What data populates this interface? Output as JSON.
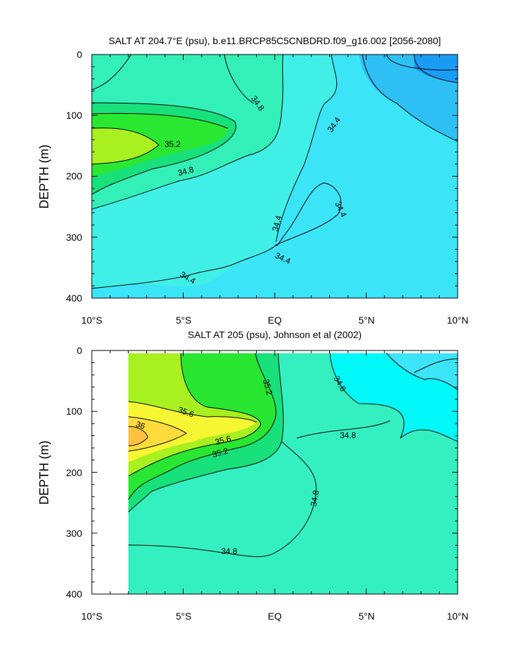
{
  "chart_data": [
    {
      "type": "heatmap",
      "title": "SALT AT 204.7°E (psu), b.e11.BRCP85C5CNBDRD.f09_g16.002 [2056-2080]",
      "xlabel": "",
      "ylabel": "DEPTH (m)",
      "xlim": [
        -10,
        10
      ],
      "ylim": [
        400,
        0
      ],
      "y_ticks": [
        "0",
        "100",
        "200",
        "300",
        "400"
      ],
      "x_ticks": [
        "10°S",
        "5°S",
        "EQ",
        "5°N",
        "10°N"
      ],
      "grid": false,
      "contour_labels": [
        "34.8",
        "35.2",
        "34.8",
        "34.4",
        "34.4",
        "34.4",
        "34.4",
        "34.4"
      ],
      "colors": {
        "v34_0": "#1a9cf5",
        "v34_2": "#2ec0f5",
        "v34_4": "#3ce4f8",
        "v34_6": "#40f0e6",
        "v34_8": "#33f0b8",
        "v35_0": "#18e07a",
        "v35_2": "#2ae832",
        "v35_4": "#a8f020"
      }
    },
    {
      "type": "heatmap",
      "title": "SALT AT 205 (psu), Johnson et al (2002)",
      "xlabel": "",
      "ylabel": "DEPTH (m)",
      "xlim": [
        -10,
        10
      ],
      "ylim": [
        400,
        0
      ],
      "y_ticks": [
        "0",
        "100",
        "200",
        "300",
        "400"
      ],
      "x_ticks": [
        "10°S",
        "5°S",
        "EQ",
        "5°N",
        "10°N"
      ],
      "grid": false,
      "contour_labels": [
        "35.2",
        "34.8",
        "35.6",
        "36",
        "34.8",
        "35.6",
        "35.2",
        "34.8",
        "34.8"
      ],
      "colors": {
        "v34_4": "#3ce4f8",
        "v34_6": "#00f8f8",
        "v34_8": "#34f0c0",
        "v35_0": "#18e07a",
        "v35_2": "#28e632",
        "v35_4": "#a8f020",
        "v35_6": "#f6f632",
        "v35_8": "#ffdc3c",
        "v36_0": "#ffc040"
      }
    }
  ]
}
